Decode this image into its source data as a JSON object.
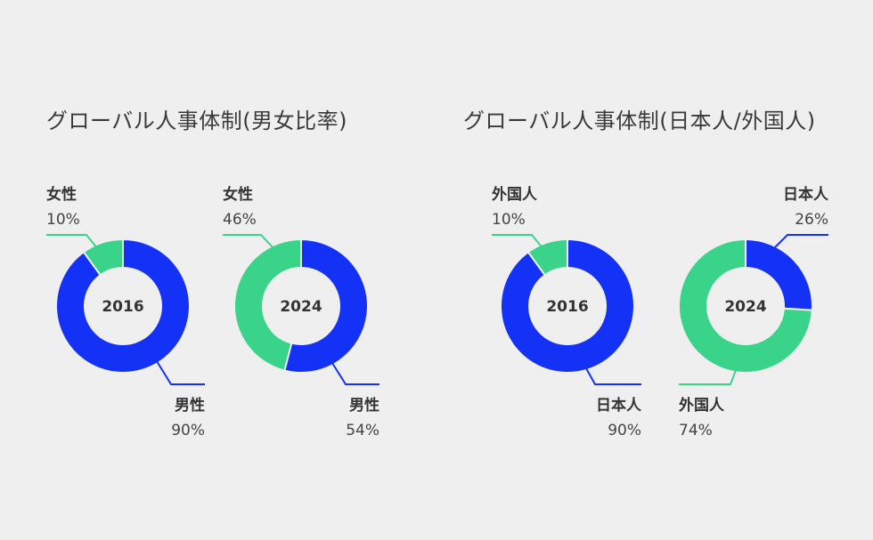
{
  "colors": {
    "blue": "#1432f5",
    "green": "#3ad38a",
    "background": "#efefef"
  },
  "chart_data": [
    {
      "type": "donut",
      "panel_title": "グローバル人事体制(男女比率)",
      "center_label": "2016",
      "slices": [
        {
          "label": "男性",
          "value": 90,
          "display": "90%",
          "color": "#1432f5"
        },
        {
          "label": "女性",
          "value": 10,
          "display": "10%",
          "color": "#3ad38a"
        }
      ]
    },
    {
      "type": "donut",
      "center_label": "2024",
      "slices": [
        {
          "label": "男性",
          "value": 54,
          "display": "54%",
          "color": "#1432f5"
        },
        {
          "label": "女性",
          "value": 46,
          "display": "46%",
          "color": "#3ad38a"
        }
      ]
    },
    {
      "type": "donut",
      "panel_title": "グローバル人事体制(日本人/外国人)",
      "center_label": "2016",
      "slices": [
        {
          "label": "日本人",
          "value": 90,
          "display": "90%",
          "color": "#1432f5"
        },
        {
          "label": "外国人",
          "value": 10,
          "display": "10%",
          "color": "#3ad38a"
        }
      ]
    },
    {
      "type": "donut",
      "center_label": "2024",
      "slices": [
        {
          "label": "日本人",
          "value": 26,
          "display": "26%",
          "color": "#1432f5"
        },
        {
          "label": "外国人",
          "value": 74,
          "display": "74%",
          "color": "#3ad38a"
        }
      ]
    }
  ]
}
